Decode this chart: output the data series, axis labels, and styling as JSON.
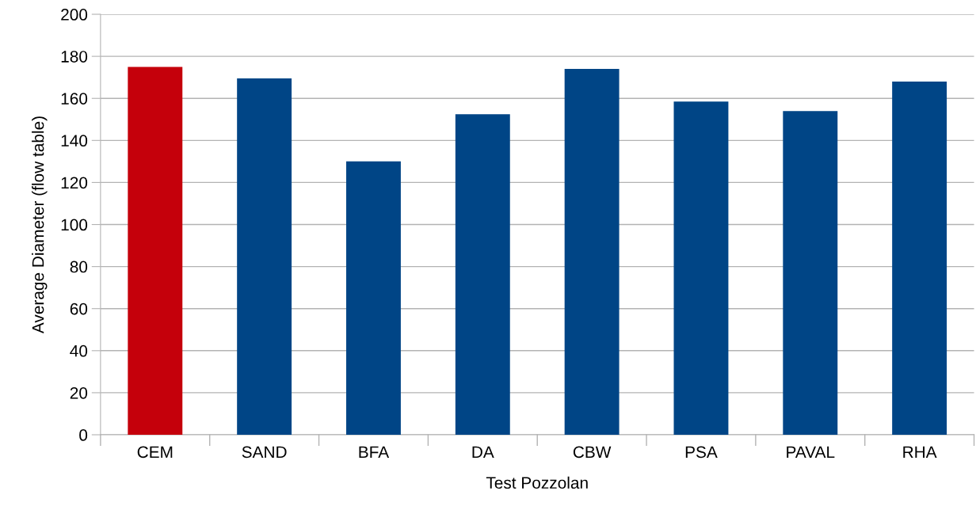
{
  "chart_data": {
    "type": "bar",
    "xlabel": "Test Pozzolan",
    "ylabel": "Average Diameter (flow table)",
    "categories": [
      "CEM",
      "SAND",
      "BFA",
      "DA",
      "CBW",
      "PSA",
      "PAVAL",
      "RHA"
    ],
    "values": [
      175,
      169.5,
      130,
      152.5,
      174,
      158.5,
      154,
      168
    ],
    "colors": [
      "#c5000b",
      "#004586",
      "#004586",
      "#004586",
      "#004586",
      "#004586",
      "#004586",
      "#004586"
    ],
    "ylim": [
      0,
      200
    ],
    "yticks": [
      0,
      20,
      40,
      60,
      80,
      100,
      120,
      140,
      160,
      180,
      200
    ],
    "grid": "y",
    "legend": false
  }
}
